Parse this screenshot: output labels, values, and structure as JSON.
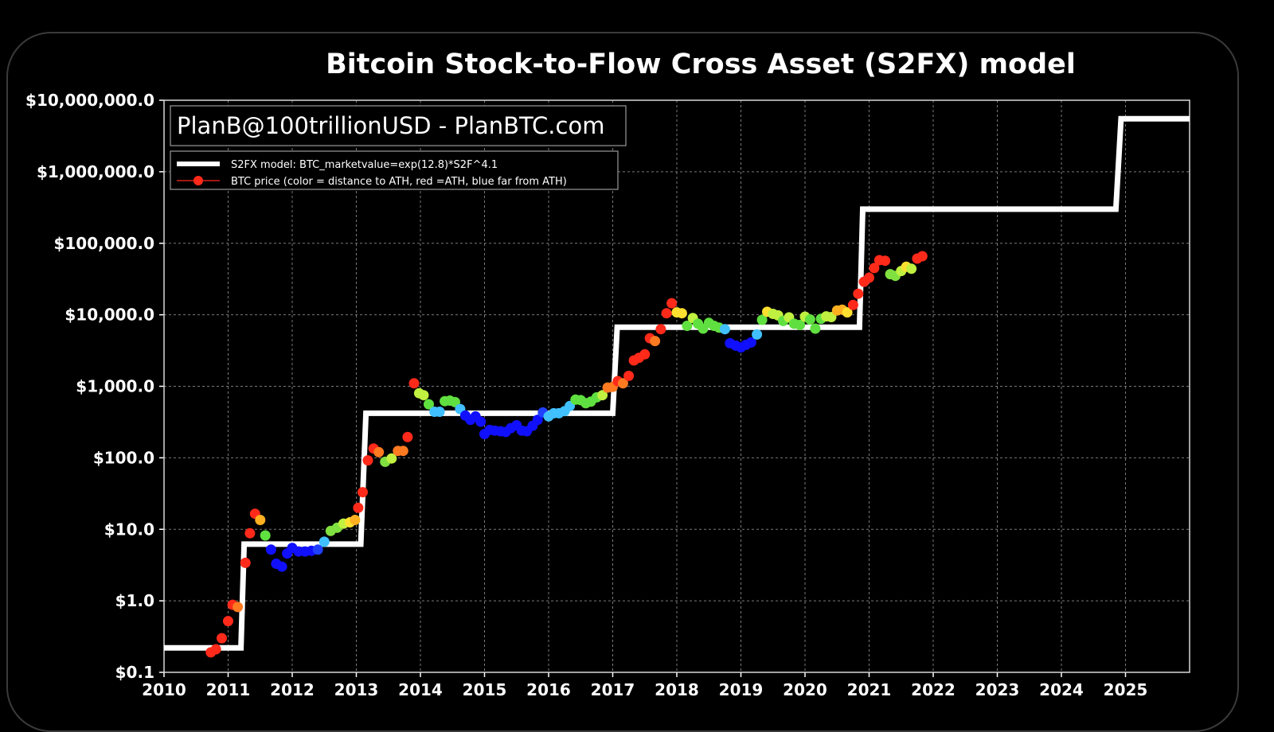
{
  "chart_data": {
    "type": "scatter",
    "title": "Bitcoin Stock-to-Flow Cross Asset (S2FX) model",
    "watermark": "PlanB@100trillionUSD  -  PlanBTC.com",
    "xlabel": "",
    "ylabel": "",
    "x_scale": "linear (year)",
    "y_scale": "log",
    "xlim": [
      2010,
      2026
    ],
    "ylim": [
      0.1,
      10000000
    ],
    "grid": true,
    "legend_position": "top-left",
    "x_ticks": [
      "2010",
      "2011",
      "2012",
      "2013",
      "2014",
      "2015",
      "2016",
      "2017",
      "2018",
      "2019",
      "2020",
      "2021",
      "2022",
      "2023",
      "2024",
      "2025"
    ],
    "y_ticks": [
      {
        "value": 10000000,
        "label": "$10,000,000.0"
      },
      {
        "value": 1000000,
        "label": "$1,000,000.0"
      },
      {
        "value": 100000,
        "label": "$100,000.0"
      },
      {
        "value": 10000,
        "label": "$10,000.0"
      },
      {
        "value": 1000,
        "label": "$1,000.0"
      },
      {
        "value": 100,
        "label": "$100.0"
      },
      {
        "value": 10,
        "label": "$10.0"
      },
      {
        "value": 1,
        "label": "$1.0"
      },
      {
        "value": 0.1,
        "label": "$0.1"
      }
    ],
    "series": [
      {
        "name": "S2FX model: BTC_marketvalue=exp(12.8)*S2F^4.1",
        "type": "step-line",
        "color": "#ffffff",
        "points": [
          [
            2010.0,
            0.22
          ],
          [
            2011.2,
            0.22
          ],
          [
            2011.25,
            6.2
          ],
          [
            2013.07,
            6.2
          ],
          [
            2013.15,
            420
          ],
          [
            2017.0,
            420
          ],
          [
            2017.07,
            6700
          ],
          [
            2020.85,
            6700
          ],
          [
            2020.9,
            300000
          ],
          [
            2024.85,
            300000
          ],
          [
            2024.93,
            5500000
          ],
          [
            2026.0,
            5500000
          ]
        ]
      },
      {
        "name": "BTC price (color = distance to ATH, red =ATH, blue far from ATH)",
        "type": "scatter",
        "color": "#ff2a1a",
        "points": [
          {
            "x": 2010.73,
            "y": 0.19,
            "color": "#ff2a1a"
          },
          {
            "x": 2010.81,
            "y": 0.21,
            "color": "#ff2a1a"
          },
          {
            "x": 2010.9,
            "y": 0.3,
            "color": "#ff2a1a"
          },
          {
            "x": 2011.0,
            "y": 0.52,
            "color": "#ff2a1a"
          },
          {
            "x": 2011.07,
            "y": 0.88,
            "color": "#ff2a1a"
          },
          {
            "x": 2011.15,
            "y": 0.82,
            "color": "#ff7a20"
          },
          {
            "x": 2011.27,
            "y": 3.4,
            "color": "#ff2a1a"
          },
          {
            "x": 2011.34,
            "y": 8.8,
            "color": "#ff2a1a"
          },
          {
            "x": 2011.42,
            "y": 16.5,
            "color": "#ff2a1a"
          },
          {
            "x": 2011.5,
            "y": 13.5,
            "color": "#ffb020"
          },
          {
            "x": 2011.58,
            "y": 8.2,
            "color": "#60e040"
          },
          {
            "x": 2011.67,
            "y": 5.2,
            "color": "#1010ff"
          },
          {
            "x": 2011.75,
            "y": 3.3,
            "color": "#1010ff"
          },
          {
            "x": 2011.84,
            "y": 3.0,
            "color": "#1010ff"
          },
          {
            "x": 2011.92,
            "y": 4.6,
            "color": "#1010ff"
          },
          {
            "x": 2012.0,
            "y": 5.5,
            "color": "#1010ff"
          },
          {
            "x": 2012.1,
            "y": 4.9,
            "color": "#1010ff"
          },
          {
            "x": 2012.2,
            "y": 4.9,
            "color": "#1010ff"
          },
          {
            "x": 2012.3,
            "y": 5.0,
            "color": "#1010ff"
          },
          {
            "x": 2012.4,
            "y": 5.2,
            "color": "#2040ff"
          },
          {
            "x": 2012.5,
            "y": 6.7,
            "color": "#40c0ff"
          },
          {
            "x": 2012.6,
            "y": 9.5,
            "color": "#80e040"
          },
          {
            "x": 2012.7,
            "y": 10.5,
            "color": "#80e040"
          },
          {
            "x": 2012.8,
            "y": 12.0,
            "color": "#c0f040"
          },
          {
            "x": 2012.9,
            "y": 12.5,
            "color": "#ffe030"
          },
          {
            "x": 2012.98,
            "y": 13.5,
            "color": "#ffb020"
          },
          {
            "x": 2013.03,
            "y": 20,
            "color": "#ff2a1a"
          },
          {
            "x": 2013.1,
            "y": 33,
            "color": "#ff2a1a"
          },
          {
            "x": 2013.18,
            "y": 92,
            "color": "#ff2a1a"
          },
          {
            "x": 2013.27,
            "y": 135,
            "color": "#ff2a1a"
          },
          {
            "x": 2013.35,
            "y": 120,
            "color": "#ff7a20"
          },
          {
            "x": 2013.45,
            "y": 88,
            "color": "#80e040"
          },
          {
            "x": 2013.55,
            "y": 98,
            "color": "#c0f040"
          },
          {
            "x": 2013.65,
            "y": 125,
            "color": "#ff7a20"
          },
          {
            "x": 2013.73,
            "y": 125,
            "color": "#ff7a20"
          },
          {
            "x": 2013.8,
            "y": 195,
            "color": "#ff2a1a"
          },
          {
            "x": 2013.9,
            "y": 1100,
            "color": "#ff2a1a"
          },
          {
            "x": 2013.98,
            "y": 800,
            "color": "#c0f040"
          },
          {
            "x": 2014.05,
            "y": 750,
            "color": "#c0f040"
          },
          {
            "x": 2014.13,
            "y": 560,
            "color": "#60e040"
          },
          {
            "x": 2014.22,
            "y": 440,
            "color": "#40c0ff"
          },
          {
            "x": 2014.3,
            "y": 440,
            "color": "#40c0ff"
          },
          {
            "x": 2014.38,
            "y": 620,
            "color": "#60e040"
          },
          {
            "x": 2014.46,
            "y": 630,
            "color": "#60e040"
          },
          {
            "x": 2014.54,
            "y": 600,
            "color": "#60e040"
          },
          {
            "x": 2014.62,
            "y": 480,
            "color": "#40c0ff"
          },
          {
            "x": 2014.7,
            "y": 390,
            "color": "#1010ff"
          },
          {
            "x": 2014.78,
            "y": 340,
            "color": "#1010ff"
          },
          {
            "x": 2014.86,
            "y": 380,
            "color": "#1010ff"
          },
          {
            "x": 2014.94,
            "y": 320,
            "color": "#1010ff"
          },
          {
            "x": 2015.0,
            "y": 215,
            "color": "#1010ff"
          },
          {
            "x": 2015.08,
            "y": 245,
            "color": "#1010ff"
          },
          {
            "x": 2015.16,
            "y": 240,
            "color": "#1010ff"
          },
          {
            "x": 2015.25,
            "y": 235,
            "color": "#1010ff"
          },
          {
            "x": 2015.33,
            "y": 230,
            "color": "#1010ff"
          },
          {
            "x": 2015.41,
            "y": 260,
            "color": "#1010ff"
          },
          {
            "x": 2015.5,
            "y": 285,
            "color": "#1010ff"
          },
          {
            "x": 2015.58,
            "y": 240,
            "color": "#1010ff"
          },
          {
            "x": 2015.66,
            "y": 235,
            "color": "#1010ff"
          },
          {
            "x": 2015.75,
            "y": 280,
            "color": "#1010ff"
          },
          {
            "x": 2015.83,
            "y": 340,
            "color": "#1010ff"
          },
          {
            "x": 2015.91,
            "y": 430,
            "color": "#2040ff"
          },
          {
            "x": 2016.0,
            "y": 380,
            "color": "#40c0ff"
          },
          {
            "x": 2016.08,
            "y": 420,
            "color": "#40c0ff"
          },
          {
            "x": 2016.16,
            "y": 420,
            "color": "#40c0ff"
          },
          {
            "x": 2016.25,
            "y": 450,
            "color": "#40c0ff"
          },
          {
            "x": 2016.33,
            "y": 530,
            "color": "#40c0ff"
          },
          {
            "x": 2016.42,
            "y": 650,
            "color": "#60e040"
          },
          {
            "x": 2016.5,
            "y": 640,
            "color": "#60e040"
          },
          {
            "x": 2016.58,
            "y": 580,
            "color": "#60e040"
          },
          {
            "x": 2016.66,
            "y": 610,
            "color": "#60e040"
          },
          {
            "x": 2016.75,
            "y": 700,
            "color": "#60e040"
          },
          {
            "x": 2016.84,
            "y": 750,
            "color": "#c0f040"
          },
          {
            "x": 2016.92,
            "y": 960,
            "color": "#ff7a20"
          },
          {
            "x": 2017.0,
            "y": 980,
            "color": "#ff7a20"
          },
          {
            "x": 2017.08,
            "y": 1180,
            "color": "#ff2a1a"
          },
          {
            "x": 2017.16,
            "y": 1100,
            "color": "#ff7a20"
          },
          {
            "x": 2017.25,
            "y": 1400,
            "color": "#ff2a1a"
          },
          {
            "x": 2017.33,
            "y": 2300,
            "color": "#ff2a1a"
          },
          {
            "x": 2017.41,
            "y": 2500,
            "color": "#ff2a1a"
          },
          {
            "x": 2017.5,
            "y": 2800,
            "color": "#ff2a1a"
          },
          {
            "x": 2017.58,
            "y": 4700,
            "color": "#ff2a1a"
          },
          {
            "x": 2017.66,
            "y": 4300,
            "color": "#ff7a20"
          },
          {
            "x": 2017.75,
            "y": 6300,
            "color": "#ff2a1a"
          },
          {
            "x": 2017.84,
            "y": 10500,
            "color": "#ff2a1a"
          },
          {
            "x": 2017.92,
            "y": 14500,
            "color": "#ff2a1a"
          },
          {
            "x": 2018.0,
            "y": 10800,
            "color": "#ffe030"
          },
          {
            "x": 2018.08,
            "y": 10500,
            "color": "#ffe030"
          },
          {
            "x": 2018.16,
            "y": 7000,
            "color": "#60e040"
          },
          {
            "x": 2018.25,
            "y": 9000,
            "color": "#c0f040"
          },
          {
            "x": 2018.33,
            "y": 7500,
            "color": "#60e040"
          },
          {
            "x": 2018.41,
            "y": 6400,
            "color": "#60e040"
          },
          {
            "x": 2018.5,
            "y": 7700,
            "color": "#60e040"
          },
          {
            "x": 2018.58,
            "y": 7000,
            "color": "#60e040"
          },
          {
            "x": 2018.66,
            "y": 6600,
            "color": "#60e040"
          },
          {
            "x": 2018.75,
            "y": 6300,
            "color": "#40c0ff"
          },
          {
            "x": 2018.83,
            "y": 4000,
            "color": "#1010ff"
          },
          {
            "x": 2018.92,
            "y": 3700,
            "color": "#1010ff"
          },
          {
            "x": 2019.0,
            "y": 3500,
            "color": "#1010ff"
          },
          {
            "x": 2019.08,
            "y": 3800,
            "color": "#1010ff"
          },
          {
            "x": 2019.16,
            "y": 4100,
            "color": "#1010ff"
          },
          {
            "x": 2019.25,
            "y": 5300,
            "color": "#40c0ff"
          },
          {
            "x": 2019.33,
            "y": 8500,
            "color": "#60e040"
          },
          {
            "x": 2019.41,
            "y": 11000,
            "color": "#ffe030"
          },
          {
            "x": 2019.5,
            "y": 10300,
            "color": "#c0f040"
          },
          {
            "x": 2019.58,
            "y": 9800,
            "color": "#c0f040"
          },
          {
            "x": 2019.66,
            "y": 8200,
            "color": "#60e040"
          },
          {
            "x": 2019.75,
            "y": 9200,
            "color": "#c0f040"
          },
          {
            "x": 2019.83,
            "y": 7500,
            "color": "#60e040"
          },
          {
            "x": 2019.92,
            "y": 7200,
            "color": "#60e040"
          },
          {
            "x": 2020.0,
            "y": 9400,
            "color": "#c0f040"
          },
          {
            "x": 2020.08,
            "y": 8600,
            "color": "#60e040"
          },
          {
            "x": 2020.16,
            "y": 6400,
            "color": "#60e040"
          },
          {
            "x": 2020.25,
            "y": 8800,
            "color": "#60e040"
          },
          {
            "x": 2020.33,
            "y": 9500,
            "color": "#c0f040"
          },
          {
            "x": 2020.41,
            "y": 9300,
            "color": "#c0f040"
          },
          {
            "x": 2020.5,
            "y": 11500,
            "color": "#ffb020"
          },
          {
            "x": 2020.58,
            "y": 11800,
            "color": "#ffb020"
          },
          {
            "x": 2020.66,
            "y": 10800,
            "color": "#ffe030"
          },
          {
            "x": 2020.75,
            "y": 13700,
            "color": "#ff2a1a"
          },
          {
            "x": 2020.83,
            "y": 19700,
            "color": "#ff2a1a"
          },
          {
            "x": 2020.92,
            "y": 29000,
            "color": "#ff2a1a"
          },
          {
            "x": 2021.0,
            "y": 33000,
            "color": "#ff2a1a"
          },
          {
            "x": 2021.08,
            "y": 45000,
            "color": "#ff2a1a"
          },
          {
            "x": 2021.16,
            "y": 58000,
            "color": "#ff2a1a"
          },
          {
            "x": 2021.25,
            "y": 57000,
            "color": "#ff2a1a"
          },
          {
            "x": 2021.33,
            "y": 37000,
            "color": "#80e040"
          },
          {
            "x": 2021.41,
            "y": 35000,
            "color": "#80e040"
          },
          {
            "x": 2021.5,
            "y": 41000,
            "color": "#c0f040"
          },
          {
            "x": 2021.58,
            "y": 47000,
            "color": "#ffe030"
          },
          {
            "x": 2021.66,
            "y": 44000,
            "color": "#c0f040"
          },
          {
            "x": 2021.75,
            "y": 61000,
            "color": "#ff2a1a"
          },
          {
            "x": 2021.83,
            "y": 66000,
            "color": "#ff2a1a"
          }
        ]
      }
    ]
  }
}
